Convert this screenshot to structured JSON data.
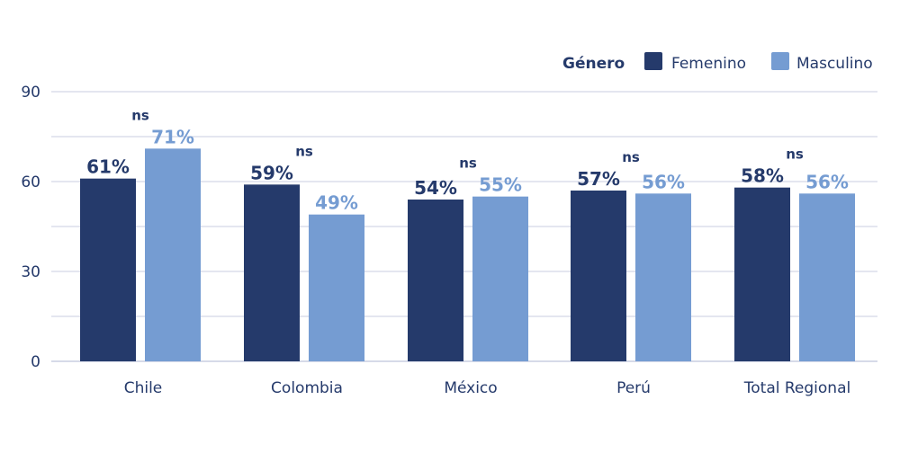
{
  "chart_data": {
    "type": "bar",
    "title": "",
    "xlabel": "",
    "ylabel": "",
    "ylim": [
      0,
      90
    ],
    "yticks": [
      0,
      30,
      60,
      90
    ],
    "grid": true,
    "legend": {
      "title": "Género",
      "placement": "top-right"
    },
    "categories": [
      "Chile",
      "Colombia",
      "México",
      "Perú",
      "Total Regional"
    ],
    "series": [
      {
        "name": "Femenino",
        "color": "#253a6b",
        "values": [
          61,
          59,
          54,
          57,
          58
        ],
        "labels": [
          "61%",
          "59%",
          "54%",
          "57%",
          "58%"
        ]
      },
      {
        "name": "Masculino",
        "color": "#759cd2",
        "values": [
          71,
          49,
          55,
          56,
          56
        ],
        "labels": [
          "71%",
          "49%",
          "55%",
          "56%",
          "56%"
        ]
      }
    ],
    "annotations": [
      "ns",
      "ns",
      "ns",
      "ns",
      "ns"
    ]
  },
  "colors": {
    "text": "#253a6b",
    "grid": "#c9cde0"
  }
}
